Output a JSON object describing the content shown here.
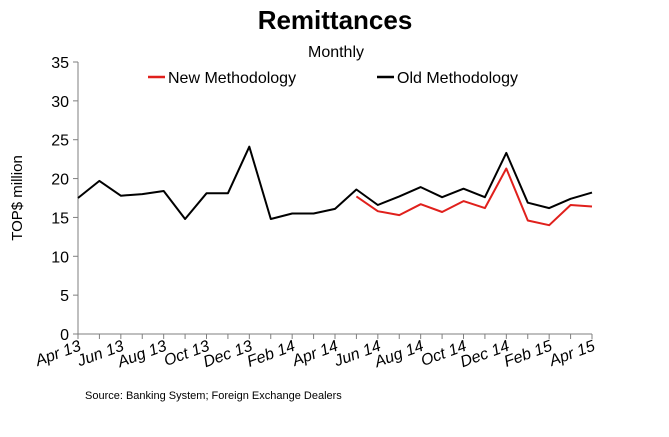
{
  "chart_data": {
    "type": "line",
    "title": "Remittances",
    "subtitle": "Monthly",
    "ylabel": "TOP$ million",
    "xlabel": "",
    "ylim": [
      0,
      35
    ],
    "yticks": [
      0,
      5,
      10,
      15,
      20,
      25,
      30,
      35
    ],
    "grid": false,
    "legend_position": "top",
    "x": [
      "Apr 13",
      "May 13",
      "Jun 13",
      "Jul 13",
      "Aug 13",
      "Sep 13",
      "Oct 13",
      "Nov 13",
      "Dec 13",
      "Jan 14",
      "Feb 14",
      "Mar 14",
      "Apr 14",
      "May 14",
      "Jun 14",
      "Jul 14",
      "Aug 14",
      "Sep 14",
      "Oct 14",
      "Nov 14",
      "Dec 14",
      "Jan 15",
      "Feb 15",
      "Mar 15",
      "Apr 15"
    ],
    "tick_labels": [
      "Apr 13",
      "Jun 13",
      "Aug 13",
      "Oct 13",
      "Dec 13",
      "Feb 14",
      "Apr 14",
      "Jun 14",
      "Aug 14",
      "Oct 14",
      "Dec 14",
      "Feb 15",
      "Apr 15"
    ],
    "series": [
      {
        "name": "New Methodology",
        "color": "#e0201c",
        "values": [
          null,
          null,
          null,
          null,
          null,
          null,
          null,
          null,
          null,
          null,
          null,
          null,
          null,
          17.7,
          15.8,
          15.3,
          16.7,
          15.7,
          17.1,
          16.2,
          21.3,
          14.6,
          14.0,
          16.6,
          16.4
        ]
      },
      {
        "name": "Old Methodology",
        "color": "#000000",
        "values": [
          17.5,
          19.7,
          17.8,
          18.0,
          18.4,
          14.8,
          18.1,
          18.1,
          24.1,
          14.8,
          15.5,
          15.5,
          16.1,
          18.6,
          16.6,
          17.7,
          18.9,
          17.6,
          18.7,
          17.6,
          23.3,
          16.9,
          16.2,
          17.4,
          18.2
        ]
      }
    ],
    "source": "Source:  Banking System; Foreign Exchange Dealers"
  }
}
